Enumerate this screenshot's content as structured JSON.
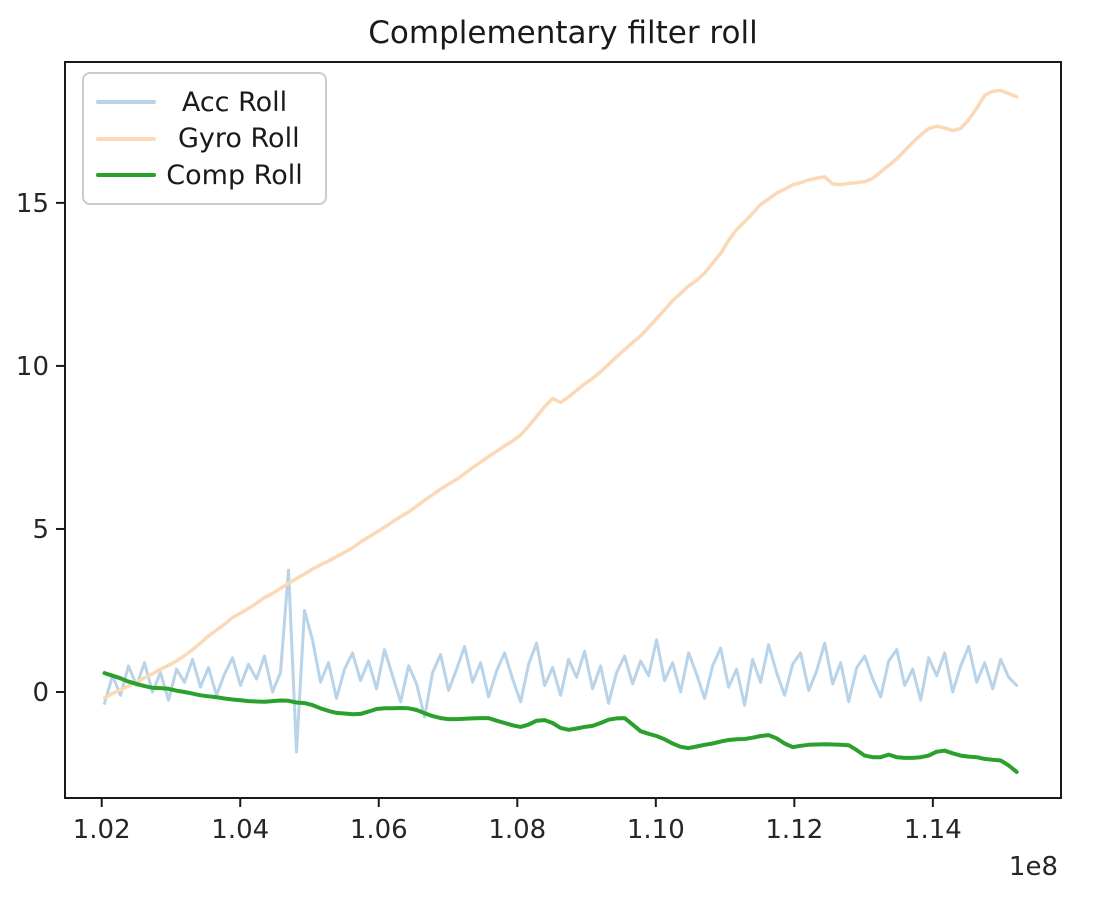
{
  "chart_data": {
    "type": "line",
    "title": "Complementary filter roll",
    "xlabel": "",
    "ylabel": "",
    "x_offset_text": "1e8",
    "xlim": [
      1.0147,
      1.1585
    ],
    "ylim": [
      -3.25,
      19.32
    ],
    "x_ticks": [
      1.02,
      1.04,
      1.06,
      1.08,
      1.1,
      1.12,
      1.14
    ],
    "x_tick_labels": [
      "1.02",
      "1.04",
      "1.06",
      "1.08",
      "1.10",
      "1.12",
      "1.14"
    ],
    "y_ticks": [
      0,
      5,
      10,
      15
    ],
    "y_tick_labels": [
      "0",
      "5",
      "10",
      "15"
    ],
    "grid": false,
    "legend_position": "upper-left",
    "axis_color": "#1a1a1a",
    "text_color": "#262626",
    "x_start": 1.0204,
    "x_step": 0.0011553,
    "n_points": 115,
    "series": [
      {
        "name": "Acc Roll",
        "color": "#b9d3e8",
        "line_width": 3,
        "values": [
          -0.35,
          0.5,
          -0.1,
          0.8,
          0.2,
          0.9,
          0.0,
          0.6,
          -0.25,
          0.7,
          0.3,
          1.0,
          0.15,
          0.75,
          -0.1,
          0.55,
          1.05,
          0.2,
          0.85,
          0.4,
          1.1,
          0.0,
          0.6,
          3.74,
          -1.84,
          2.5,
          1.6,
          0.3,
          0.9,
          -0.2,
          0.7,
          1.2,
          0.35,
          0.95,
          0.1,
          1.3,
          0.5,
          -0.3,
          0.8,
          0.25,
          -0.77,
          0.6,
          1.15,
          0.05,
          0.7,
          1.4,
          0.3,
          0.9,
          -0.15,
          0.65,
          1.2,
          0.4,
          -0.3,
          0.85,
          1.5,
          0.2,
          0.75,
          -0.1,
          1.0,
          0.45,
          1.25,
          0.1,
          0.8,
          -0.35,
          0.6,
          1.1,
          0.25,
          0.95,
          0.5,
          1.6,
          0.35,
          0.9,
          0.0,
          1.2,
          0.55,
          -0.2,
          0.8,
          1.35,
          0.15,
          0.7,
          -0.4,
          1.0,
          0.3,
          1.45,
          0.6,
          -0.1,
          0.85,
          1.2,
          0.05,
          0.65,
          1.5,
          0.25,
          0.9,
          -0.3,
          0.75,
          1.1,
          0.4,
          -0.15,
          0.95,
          1.3,
          0.2,
          0.7,
          -0.25,
          1.05,
          0.5,
          1.2,
          0.0,
          0.8,
          1.4,
          0.3,
          0.9,
          0.1,
          1.0,
          0.45,
          0.2
        ]
      },
      {
        "name": " Gyro Roll",
        "color": "#fcd9b6",
        "line_width": 3.5,
        "values": [
          -0.18,
          -0.05,
          0.07,
          0.18,
          0.3,
          0.44,
          0.56,
          0.7,
          0.82,
          0.95,
          1.12,
          1.3,
          1.5,
          1.72,
          1.9,
          2.08,
          2.28,
          2.42,
          2.56,
          2.72,
          2.9,
          3.02,
          3.18,
          3.33,
          3.48,
          3.62,
          3.77,
          3.9,
          4.02,
          4.15,
          4.28,
          4.42,
          4.6,
          4.75,
          4.9,
          5.05,
          5.22,
          5.38,
          5.52,
          5.7,
          5.88,
          6.05,
          6.22,
          6.38,
          6.52,
          6.7,
          6.88,
          7.05,
          7.22,
          7.38,
          7.55,
          7.7,
          7.88,
          8.15,
          8.45,
          8.75,
          9.0,
          8.88,
          9.05,
          9.25,
          9.45,
          9.62,
          9.82,
          10.05,
          10.28,
          10.5,
          10.72,
          10.92,
          11.18,
          11.45,
          11.72,
          12.0,
          12.22,
          12.45,
          12.62,
          12.85,
          13.15,
          13.45,
          13.85,
          14.18,
          14.42,
          14.68,
          14.95,
          15.12,
          15.3,
          15.42,
          15.55,
          15.62,
          15.7,
          15.76,
          15.8,
          15.58,
          15.56,
          15.6,
          15.62,
          15.65,
          15.75,
          15.95,
          16.15,
          16.35,
          16.6,
          16.85,
          17.08,
          17.28,
          17.35,
          17.3,
          17.22,
          17.28,
          17.55,
          17.9,
          18.3,
          18.42,
          18.45,
          18.35,
          18.25
        ]
      },
      {
        "name": "Comp Roll",
        "color": "#2ca02c",
        "line_width": 4,
        "values": [
          0.58,
          0.5,
          0.42,
          0.32,
          0.25,
          0.18,
          0.13,
          0.12,
          0.1,
          0.04,
          0.0,
          -0.05,
          -0.1,
          -0.13,
          -0.16,
          -0.2,
          -0.23,
          -0.25,
          -0.28,
          -0.29,
          -0.3,
          -0.28,
          -0.26,
          -0.27,
          -0.32,
          -0.34,
          -0.4,
          -0.5,
          -0.58,
          -0.64,
          -0.66,
          -0.68,
          -0.67,
          -0.6,
          -0.52,
          -0.5,
          -0.5,
          -0.49,
          -0.5,
          -0.55,
          -0.65,
          -0.74,
          -0.8,
          -0.83,
          -0.83,
          -0.82,
          -0.81,
          -0.8,
          -0.8,
          -0.88,
          -0.95,
          -1.02,
          -1.07,
          -1.0,
          -0.88,
          -0.86,
          -0.95,
          -1.1,
          -1.16,
          -1.12,
          -1.07,
          -1.04,
          -0.95,
          -0.85,
          -0.81,
          -0.8,
          -1.0,
          -1.2,
          -1.28,
          -1.35,
          -1.45,
          -1.58,
          -1.68,
          -1.72,
          -1.67,
          -1.62,
          -1.58,
          -1.52,
          -1.47,
          -1.45,
          -1.44,
          -1.4,
          -1.35,
          -1.32,
          -1.42,
          -1.58,
          -1.69,
          -1.65,
          -1.62,
          -1.61,
          -1.6,
          -1.61,
          -1.62,
          -1.63,
          -1.78,
          -1.95,
          -2.0,
          -2.0,
          -1.92,
          -2.0,
          -2.02,
          -2.02,
          -2.0,
          -1.95,
          -1.83,
          -1.8,
          -1.88,
          -1.95,
          -1.98,
          -2.0,
          -2.05,
          -2.08,
          -2.1,
          -2.25,
          -2.45
        ]
      }
    ]
  }
}
